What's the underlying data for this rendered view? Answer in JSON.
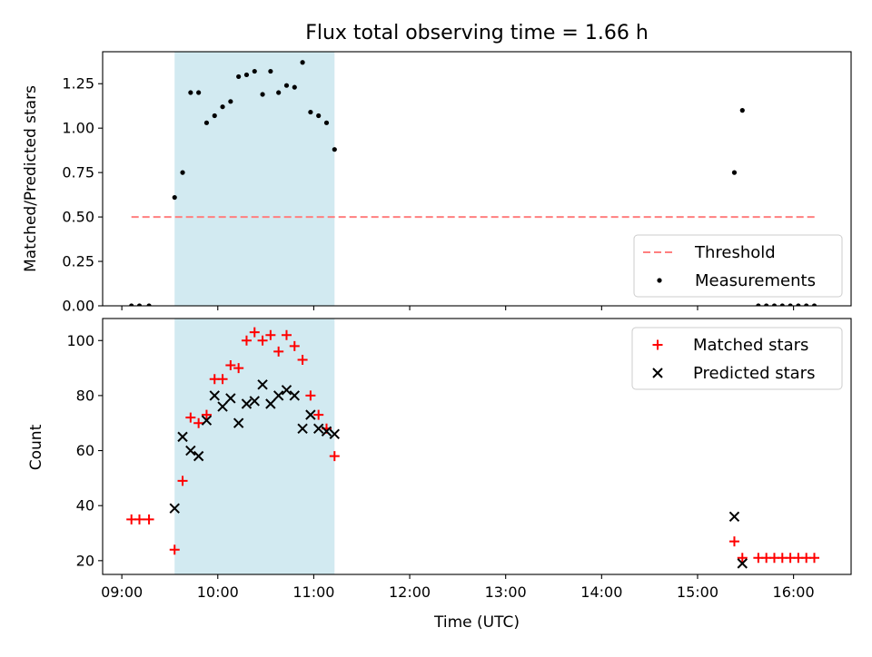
{
  "chart_data": [
    {
      "type": "scatter",
      "title": "Flux total observing time = 1.66 h",
      "xlabel": "",
      "ylabel": "Matched/Predicted stars",
      "ylim": [
        0,
        1.43
      ],
      "xlim": [
        "08:48",
        "16:36"
      ],
      "yticks": [
        "0.00",
        "0.25",
        "0.50",
        "0.75",
        "1.00",
        "1.25"
      ],
      "ytick_values": [
        0,
        0.25,
        0.5,
        0.75,
        1.0,
        1.25
      ],
      "shaded_region": {
        "x": [
          "09:33",
          "11:13"
        ],
        "color": "#add8e6"
      },
      "legend_position": "lower-right",
      "series": [
        {
          "name": "Threshold",
          "style": "dashed-line",
          "color": "#ff7f7f",
          "x": [
            "09:06",
            "16:14"
          ],
          "y": [
            0.5,
            0.5
          ]
        },
        {
          "name": "Measurements",
          "style": "dot",
          "color": "#000000",
          "x": [
            "09:06",
            "09:11",
            "09:17",
            "09:33",
            "09:38",
            "09:43",
            "09:48",
            "09:53",
            "09:58",
            "10:03",
            "10:08",
            "10:13",
            "10:18",
            "10:23",
            "10:28",
            "10:33",
            "10:38",
            "10:43",
            "10:48",
            "10:53",
            "10:58",
            "11:03",
            "11:08",
            "11:13",
            "15:23",
            "15:28",
            "15:38",
            "15:43",
            "15:48",
            "15:53",
            "15:58",
            "16:03",
            "16:08",
            "16:13"
          ],
          "y": [
            0,
            0,
            0,
            0.61,
            0.75,
            1.2,
            1.2,
            1.03,
            1.07,
            1.12,
            1.15,
            1.29,
            1.3,
            1.32,
            1.19,
            1.32,
            1.2,
            1.24,
            1.23,
            1.37,
            1.09,
            1.07,
            1.03,
            0.88,
            0.75,
            1.1,
            0,
            0,
            0,
            0,
            0,
            0,
            0,
            0
          ]
        }
      ]
    },
    {
      "type": "scatter",
      "title": "",
      "xlabel": "Time (UTC)",
      "ylabel": "Count",
      "ylim": [
        15,
        108
      ],
      "xlim": [
        "08:48",
        "16:36"
      ],
      "yticks": [
        "20",
        "40",
        "60",
        "80",
        "100"
      ],
      "ytick_values": [
        20,
        40,
        60,
        80,
        100
      ],
      "xticks": [
        "09:00",
        "10:00",
        "11:00",
        "12:00",
        "13:00",
        "14:00",
        "15:00",
        "16:00"
      ],
      "shaded_region": {
        "x": [
          "09:33",
          "11:13"
        ],
        "color": "#add8e6"
      },
      "legend_position": "upper-right",
      "series": [
        {
          "name": "Matched stars",
          "marker": "+",
          "color": "#ff0000",
          "x": [
            "09:06",
            "09:11",
            "09:17",
            "09:33",
            "09:38",
            "09:43",
            "09:48",
            "09:53",
            "09:58",
            "10:03",
            "10:08",
            "10:13",
            "10:18",
            "10:23",
            "10:28",
            "10:33",
            "10:38",
            "10:43",
            "10:48",
            "10:53",
            "10:58",
            "11:03",
            "11:08",
            "11:13",
            "15:23",
            "15:28",
            "15:38",
            "15:43",
            "15:48",
            "15:53",
            "15:58",
            "16:03",
            "16:08",
            "16:13"
          ],
          "y": [
            35,
            35,
            35,
            24,
            49,
            72,
            70,
            73,
            86,
            86,
            91,
            90,
            100,
            103,
            100,
            102,
            96,
            102,
            98,
            93,
            80,
            73,
            68,
            58,
            27,
            21,
            21,
            21,
            21,
            21,
            21,
            21,
            21,
            21
          ]
        },
        {
          "name": "Predicted stars",
          "marker": "x",
          "color": "#000000",
          "x": [
            "09:33",
            "09:38",
            "09:43",
            "09:48",
            "09:53",
            "09:58",
            "10:03",
            "10:08",
            "10:13",
            "10:18",
            "10:23",
            "10:28",
            "10:33",
            "10:38",
            "10:43",
            "10:48",
            "10:53",
            "10:58",
            "11:03",
            "11:08",
            "11:13",
            "15:23",
            "15:28"
          ],
          "y": [
            39,
            65,
            60,
            58,
            71,
            80,
            76,
            79,
            70,
            77,
            78,
            84,
            77,
            80,
            82,
            80,
            68,
            73,
            68,
            67,
            66,
            36,
            19
          ]
        }
      ]
    }
  ]
}
